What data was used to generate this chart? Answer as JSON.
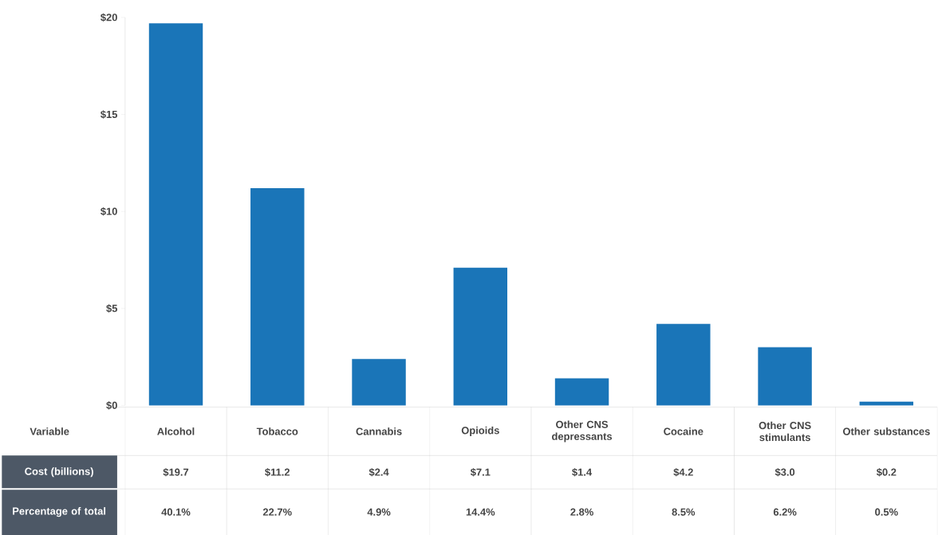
{
  "chart_data": {
    "type": "bar",
    "categories": [
      "Alcohol",
      "Tobacco",
      "Cannabis",
      "Opioids",
      "Other CNS depressants",
      "Cocaine",
      "Other CNS stimulants",
      "Other substances"
    ],
    "values": [
      19.7,
      11.2,
      2.4,
      7.1,
      1.4,
      4.2,
      3.0,
      0.2
    ],
    "value_labels": [
      "$19.7",
      "$11.2",
      "$2.4",
      "$7.1",
      "$1.4",
      "$4.2",
      "$3.0",
      "$0.2"
    ],
    "color": "#1a75b8",
    "xlabel": "Variable",
    "ylim": [
      0,
      20
    ],
    "yticks": [
      {
        "value": 0,
        "label": "$0"
      },
      {
        "value": 5,
        "label": "$5"
      },
      {
        "value": 10,
        "label": "$10"
      },
      {
        "value": 15,
        "label": "$15"
      },
      {
        "value": 20,
        "label": "$20"
      }
    ],
    "annotations": [
      "Cost (billions)",
      "Percentage of total",
      "40.1%",
      "22.7%",
      "4.9%",
      "14.4%",
      "2.8%",
      "8.5%",
      "6.2%",
      "0.5%"
    ]
  }
}
